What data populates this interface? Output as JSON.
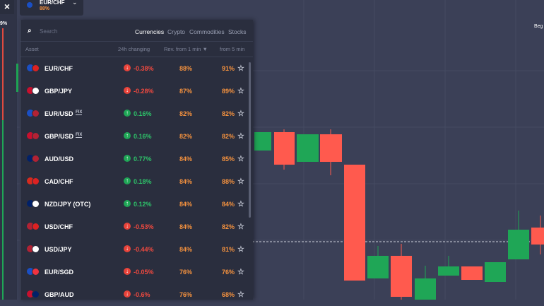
{
  "top_asset": {
    "name": "EUR/CHF",
    "payout": "88%"
  },
  "close": "×",
  "left_label": "9%",
  "right_label": "Beg",
  "search": {
    "placeholder": "Search"
  },
  "tabs": [
    "Currencies",
    "Crypto",
    "Commodities",
    "Stocks"
  ],
  "columns": [
    "Asset",
    "24h changing",
    "Rev. from 1 min ▼",
    "from 5 min"
  ],
  "fix_badge": "FIX",
  "rows": [
    {
      "asset": "EUR/CHF",
      "change": "-0.38%",
      "rev1": "88%",
      "rev5": "91%",
      "direction": "down",
      "fix": false,
      "flags": [
        "#1a4fc4",
        "#d22"
      ]
    },
    {
      "asset": "GBP/JPY",
      "change": "-0.28%",
      "rev1": "87%",
      "rev5": "89%",
      "direction": "down",
      "fix": false,
      "flags": [
        "#c8102e",
        "#fff"
      ]
    },
    {
      "asset": "EUR/USD",
      "change": "0.16%",
      "rev1": "82%",
      "rev5": "82%",
      "direction": "up",
      "fix": true,
      "flags": [
        "#1a4fc4",
        "#b22234"
      ]
    },
    {
      "asset": "GBP/USD",
      "change": "0.16%",
      "rev1": "82%",
      "rev5": "82%",
      "direction": "up",
      "fix": true,
      "flags": [
        "#c8102e",
        "#b22234"
      ]
    },
    {
      "asset": "AUD/USD",
      "change": "0.77%",
      "rev1": "84%",
      "rev5": "85%",
      "direction": "up",
      "fix": false,
      "flags": [
        "#012169",
        "#b22234"
      ]
    },
    {
      "asset": "CAD/CHF",
      "change": "0.18%",
      "rev1": "84%",
      "rev5": "88%",
      "direction": "up",
      "fix": false,
      "flags": [
        "#d52b1e",
        "#d22"
      ]
    },
    {
      "asset": "NZD/JPY (OTC)",
      "change": "0.12%",
      "rev1": "84%",
      "rev5": "84%",
      "direction": "up",
      "fix": false,
      "flags": [
        "#012169",
        "#fff"
      ]
    },
    {
      "asset": "USD/CHF",
      "change": "-0.53%",
      "rev1": "84%",
      "rev5": "82%",
      "direction": "down",
      "fix": false,
      "flags": [
        "#b22234",
        "#d22"
      ]
    },
    {
      "asset": "USD/JPY",
      "change": "-0.44%",
      "rev1": "84%",
      "rev5": "81%",
      "direction": "down",
      "fix": false,
      "flags": [
        "#b22234",
        "#fff"
      ]
    },
    {
      "asset": "EUR/SGD",
      "change": "-0.05%",
      "rev1": "76%",
      "rev5": "76%",
      "direction": "down",
      "fix": false,
      "flags": [
        "#1a4fc4",
        "#ef3340"
      ]
    },
    {
      "asset": "GBP/AUD",
      "change": "-0.6%",
      "rev1": "76%",
      "rev5": "68%",
      "direction": "down",
      "fix": false,
      "flags": [
        "#c8102e",
        "#012169"
      ]
    }
  ]
}
